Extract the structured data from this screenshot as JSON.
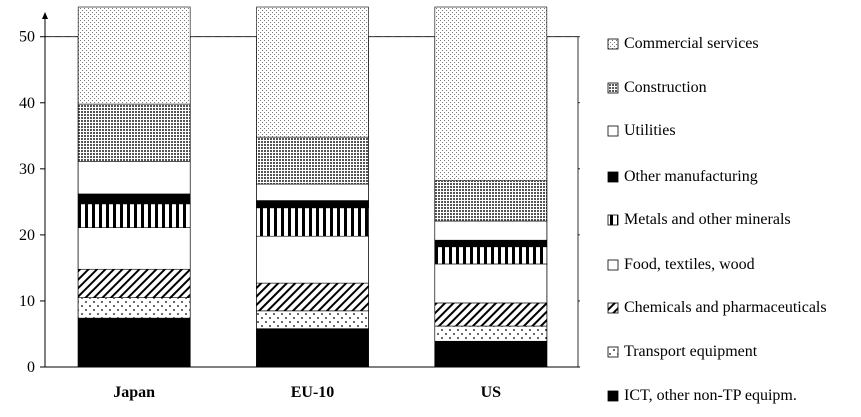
{
  "chart_data": {
    "type": "stacked_bar",
    "categories": [
      "Japan",
      "EU-10",
      "US"
    ],
    "series": [
      {
        "name": "ICT, other non-TP equipm.",
        "color": "#000000",
        "pattern": "solid",
        "values": [
          7.4,
          5.8,
          3.9
        ]
      },
      {
        "name": "Transport equipment",
        "color": "#ffffff",
        "pattern": "dots",
        "values": [
          3.1,
          2.7,
          2.3
        ]
      },
      {
        "name": "Chemicals and pharmaceuticals",
        "color": "#ffffff",
        "pattern": "diagonal",
        "values": [
          4.3,
          4.2,
          3.5
        ]
      },
      {
        "name": "Food, textiles, wood",
        "color": "#ffffff",
        "pattern": "solid",
        "values": [
          6.3,
          7.1,
          5.9
        ]
      },
      {
        "name": "Metals and other minerals",
        "color": "#ffffff",
        "pattern": "vertical",
        "values": [
          3.6,
          4.3,
          2.6
        ]
      },
      {
        "name": "Other manufacturing",
        "color": "#000000",
        "pattern": "solid",
        "values": [
          1.5,
          1.1,
          1.0
        ]
      },
      {
        "name": "Utilities",
        "color": "#ffffff",
        "pattern": "solid",
        "values": [
          4.9,
          2.5,
          2.9
        ]
      },
      {
        "name": "Construction",
        "color": "#ffffff",
        "pattern": "crosshatch",
        "values": [
          8.7,
          7.1,
          6.1
        ]
      },
      {
        "name": "Commercial services",
        "color": "#ffffff",
        "pattern": "finedots",
        "values": [
          14.7,
          19.7,
          26.3
        ]
      }
    ],
    "ylim": [
      0,
      54.5
    ],
    "yticks": [
      0,
      10,
      20,
      30,
      40,
      50
    ],
    "grid": true
  }
}
